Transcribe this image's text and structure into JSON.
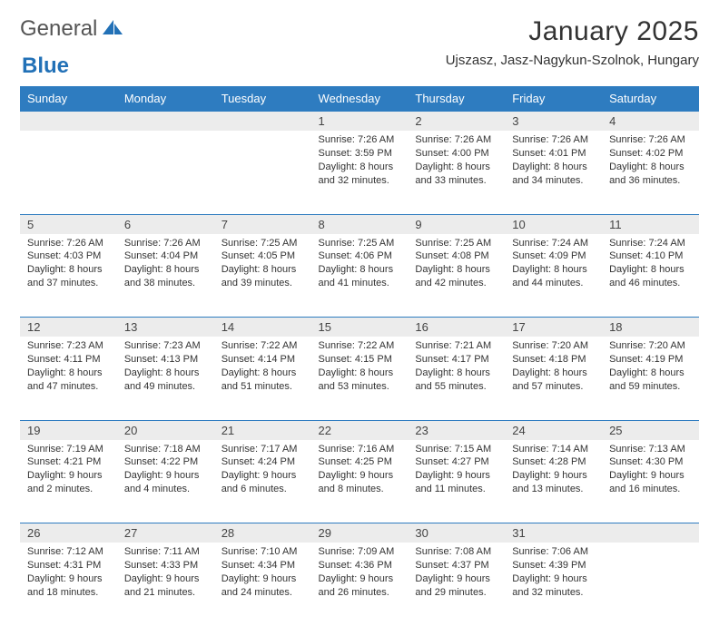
{
  "brand": {
    "text1": "General",
    "text2": "Blue"
  },
  "title": "January 2025",
  "location": "Ujszasz, Jasz-Nagykun-Szolnok, Hungary",
  "colors": {
    "header_bg": "#2e7cc0",
    "header_fg": "#ffffff",
    "daynum_bg": "#ececec",
    "rule": "#2e7cc0",
    "brand_blue": "#2271b7"
  },
  "weekdays": [
    "Sunday",
    "Monday",
    "Tuesday",
    "Wednesday",
    "Thursday",
    "Friday",
    "Saturday"
  ],
  "cells": [
    {
      "day": "",
      "sr": "",
      "ss": "",
      "dl1": "",
      "dl2": ""
    },
    {
      "day": "",
      "sr": "",
      "ss": "",
      "dl1": "",
      "dl2": ""
    },
    {
      "day": "",
      "sr": "",
      "ss": "",
      "dl1": "",
      "dl2": ""
    },
    {
      "day": "1",
      "sr": "Sunrise: 7:26 AM",
      "ss": "Sunset: 3:59 PM",
      "dl1": "Daylight: 8 hours",
      "dl2": "and 32 minutes."
    },
    {
      "day": "2",
      "sr": "Sunrise: 7:26 AM",
      "ss": "Sunset: 4:00 PM",
      "dl1": "Daylight: 8 hours",
      "dl2": "and 33 minutes."
    },
    {
      "day": "3",
      "sr": "Sunrise: 7:26 AM",
      "ss": "Sunset: 4:01 PM",
      "dl1": "Daylight: 8 hours",
      "dl2": "and 34 minutes."
    },
    {
      "day": "4",
      "sr": "Sunrise: 7:26 AM",
      "ss": "Sunset: 4:02 PM",
      "dl1": "Daylight: 8 hours",
      "dl2": "and 36 minutes."
    },
    {
      "day": "5",
      "sr": "Sunrise: 7:26 AM",
      "ss": "Sunset: 4:03 PM",
      "dl1": "Daylight: 8 hours",
      "dl2": "and 37 minutes."
    },
    {
      "day": "6",
      "sr": "Sunrise: 7:26 AM",
      "ss": "Sunset: 4:04 PM",
      "dl1": "Daylight: 8 hours",
      "dl2": "and 38 minutes."
    },
    {
      "day": "7",
      "sr": "Sunrise: 7:25 AM",
      "ss": "Sunset: 4:05 PM",
      "dl1": "Daylight: 8 hours",
      "dl2": "and 39 minutes."
    },
    {
      "day": "8",
      "sr": "Sunrise: 7:25 AM",
      "ss": "Sunset: 4:06 PM",
      "dl1": "Daylight: 8 hours",
      "dl2": "and 41 minutes."
    },
    {
      "day": "9",
      "sr": "Sunrise: 7:25 AM",
      "ss": "Sunset: 4:08 PM",
      "dl1": "Daylight: 8 hours",
      "dl2": "and 42 minutes."
    },
    {
      "day": "10",
      "sr": "Sunrise: 7:24 AM",
      "ss": "Sunset: 4:09 PM",
      "dl1": "Daylight: 8 hours",
      "dl2": "and 44 minutes."
    },
    {
      "day": "11",
      "sr": "Sunrise: 7:24 AM",
      "ss": "Sunset: 4:10 PM",
      "dl1": "Daylight: 8 hours",
      "dl2": "and 46 minutes."
    },
    {
      "day": "12",
      "sr": "Sunrise: 7:23 AM",
      "ss": "Sunset: 4:11 PM",
      "dl1": "Daylight: 8 hours",
      "dl2": "and 47 minutes."
    },
    {
      "day": "13",
      "sr": "Sunrise: 7:23 AM",
      "ss": "Sunset: 4:13 PM",
      "dl1": "Daylight: 8 hours",
      "dl2": "and 49 minutes."
    },
    {
      "day": "14",
      "sr": "Sunrise: 7:22 AM",
      "ss": "Sunset: 4:14 PM",
      "dl1": "Daylight: 8 hours",
      "dl2": "and 51 minutes."
    },
    {
      "day": "15",
      "sr": "Sunrise: 7:22 AM",
      "ss": "Sunset: 4:15 PM",
      "dl1": "Daylight: 8 hours",
      "dl2": "and 53 minutes."
    },
    {
      "day": "16",
      "sr": "Sunrise: 7:21 AM",
      "ss": "Sunset: 4:17 PM",
      "dl1": "Daylight: 8 hours",
      "dl2": "and 55 minutes."
    },
    {
      "day": "17",
      "sr": "Sunrise: 7:20 AM",
      "ss": "Sunset: 4:18 PM",
      "dl1": "Daylight: 8 hours",
      "dl2": "and 57 minutes."
    },
    {
      "day": "18",
      "sr": "Sunrise: 7:20 AM",
      "ss": "Sunset: 4:19 PM",
      "dl1": "Daylight: 8 hours",
      "dl2": "and 59 minutes."
    },
    {
      "day": "19",
      "sr": "Sunrise: 7:19 AM",
      "ss": "Sunset: 4:21 PM",
      "dl1": "Daylight: 9 hours",
      "dl2": "and 2 minutes."
    },
    {
      "day": "20",
      "sr": "Sunrise: 7:18 AM",
      "ss": "Sunset: 4:22 PM",
      "dl1": "Daylight: 9 hours",
      "dl2": "and 4 minutes."
    },
    {
      "day": "21",
      "sr": "Sunrise: 7:17 AM",
      "ss": "Sunset: 4:24 PM",
      "dl1": "Daylight: 9 hours",
      "dl2": "and 6 minutes."
    },
    {
      "day": "22",
      "sr": "Sunrise: 7:16 AM",
      "ss": "Sunset: 4:25 PM",
      "dl1": "Daylight: 9 hours",
      "dl2": "and 8 minutes."
    },
    {
      "day": "23",
      "sr": "Sunrise: 7:15 AM",
      "ss": "Sunset: 4:27 PM",
      "dl1": "Daylight: 9 hours",
      "dl2": "and 11 minutes."
    },
    {
      "day": "24",
      "sr": "Sunrise: 7:14 AM",
      "ss": "Sunset: 4:28 PM",
      "dl1": "Daylight: 9 hours",
      "dl2": "and 13 minutes."
    },
    {
      "day": "25",
      "sr": "Sunrise: 7:13 AM",
      "ss": "Sunset: 4:30 PM",
      "dl1": "Daylight: 9 hours",
      "dl2": "and 16 minutes."
    },
    {
      "day": "26",
      "sr": "Sunrise: 7:12 AM",
      "ss": "Sunset: 4:31 PM",
      "dl1": "Daylight: 9 hours",
      "dl2": "and 18 minutes."
    },
    {
      "day": "27",
      "sr": "Sunrise: 7:11 AM",
      "ss": "Sunset: 4:33 PM",
      "dl1": "Daylight: 9 hours",
      "dl2": "and 21 minutes."
    },
    {
      "day": "28",
      "sr": "Sunrise: 7:10 AM",
      "ss": "Sunset: 4:34 PM",
      "dl1": "Daylight: 9 hours",
      "dl2": "and 24 minutes."
    },
    {
      "day": "29",
      "sr": "Sunrise: 7:09 AM",
      "ss": "Sunset: 4:36 PM",
      "dl1": "Daylight: 9 hours",
      "dl2": "and 26 minutes."
    },
    {
      "day": "30",
      "sr": "Sunrise: 7:08 AM",
      "ss": "Sunset: 4:37 PM",
      "dl1": "Daylight: 9 hours",
      "dl2": "and 29 minutes."
    },
    {
      "day": "31",
      "sr": "Sunrise: 7:06 AM",
      "ss": "Sunset: 4:39 PM",
      "dl1": "Daylight: 9 hours",
      "dl2": "and 32 minutes."
    },
    {
      "day": "",
      "sr": "",
      "ss": "",
      "dl1": "",
      "dl2": ""
    }
  ]
}
